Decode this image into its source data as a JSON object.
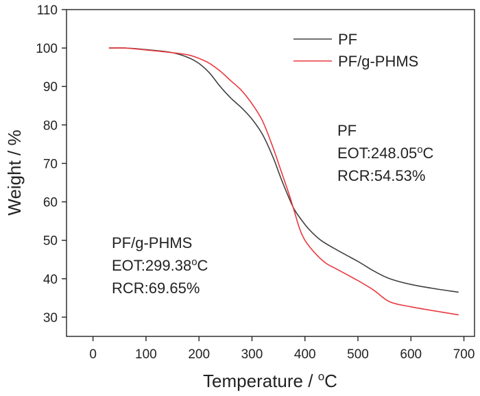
{
  "chart_data": {
    "type": "line",
    "xlabel_base": "Temperature / ",
    "xlabel_degree": "o",
    "xlabel_unit": "C",
    "ylabel": "Weight / %",
    "xlim": [
      -50,
      720
    ],
    "ylim": [
      25,
      110
    ],
    "xticks": [
      0,
      100,
      200,
      300,
      400,
      500,
      600,
      700
    ],
    "yticks": [
      30,
      40,
      50,
      60,
      70,
      80,
      90,
      100,
      110
    ],
    "grid": false,
    "legend_position": "top-right",
    "series": [
      {
        "name": "PF",
        "color": "#404040",
        "points": [
          [
            30,
            100
          ],
          [
            60,
            100
          ],
          [
            100,
            99.6
          ],
          [
            150,
            98.8
          ],
          [
            180,
            97.5
          ],
          [
            200,
            96
          ],
          [
            220,
            93.5
          ],
          [
            240,
            90
          ],
          [
            260,
            87
          ],
          [
            280,
            84.5
          ],
          [
            300,
            81.5
          ],
          [
            320,
            77.5
          ],
          [
            340,
            71.5
          ],
          [
            355,
            66
          ],
          [
            370,
            61
          ],
          [
            380,
            58
          ],
          [
            395,
            55
          ],
          [
            410,
            52.5
          ],
          [
            430,
            50
          ],
          [
            460,
            47.5
          ],
          [
            500,
            44.5
          ],
          [
            530,
            42
          ],
          [
            560,
            40
          ],
          [
            600,
            38.5
          ],
          [
            650,
            37.3
          ],
          [
            690,
            36.5
          ]
        ]
      },
      {
        "name": "PF/g-PHMS",
        "color": "#e8383d",
        "points": [
          [
            30,
            100
          ],
          [
            60,
            100
          ],
          [
            100,
            99.5
          ],
          [
            150,
            98.8
          ],
          [
            180,
            98.2
          ],
          [
            200,
            97.3
          ],
          [
            220,
            96
          ],
          [
            240,
            94
          ],
          [
            260,
            91.5
          ],
          [
            280,
            89
          ],
          [
            300,
            85.5
          ],
          [
            320,
            81
          ],
          [
            340,
            74
          ],
          [
            355,
            68
          ],
          [
            370,
            62
          ],
          [
            380,
            57.5
          ],
          [
            390,
            53
          ],
          [
            400,
            50
          ],
          [
            420,
            46.5
          ],
          [
            440,
            44
          ],
          [
            460,
            42.5
          ],
          [
            500,
            39.5
          ],
          [
            530,
            37
          ],
          [
            560,
            34
          ],
          [
            600,
            32.7
          ],
          [
            650,
            31.5
          ],
          [
            690,
            30.6
          ]
        ]
      }
    ],
    "annotations": [
      {
        "id": "pf",
        "lines": [
          {
            "text": "PF"
          },
          {
            "text": "EOT:248.05",
            "sup": "o",
            "suffix": "C"
          },
          {
            "text": "RCR:54.53%"
          }
        ]
      },
      {
        "id": "pfg",
        "lines": [
          {
            "text": "PF/g-PHMS"
          },
          {
            "text": "EOT:299.38",
            "sup": "o",
            "suffix": "C"
          },
          {
            "text": "RCR:69.65%"
          }
        ]
      }
    ]
  }
}
